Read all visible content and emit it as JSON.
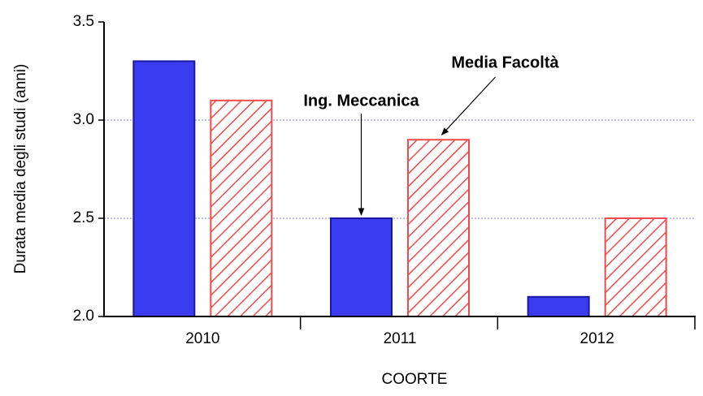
{
  "chart_data": {
    "type": "bar",
    "x_label": "COORTE",
    "y_label": "Durata media degli studi (anni)",
    "categories": [
      "2010",
      "2011",
      "2012"
    ],
    "series": [
      {
        "name": "Ing. Meccanica",
        "color": "#3b3bf2",
        "values": [
          3.3,
          2.5,
          2.1
        ]
      },
      {
        "name": "Media Facoltà",
        "color": "#f04a4a",
        "pattern": "hatch",
        "values": [
          3.1,
          2.9,
          2.5
        ]
      }
    ],
    "ylim": [
      2.0,
      3.5
    ],
    "yticks": [
      {
        "value": 2.0,
        "label": "2.0"
      },
      {
        "value": 2.5,
        "label": "2.5"
      },
      {
        "value": 3.0,
        "label": "3.0"
      },
      {
        "value": 3.5,
        "label": "3.5"
      }
    ],
    "grid": true
  }
}
